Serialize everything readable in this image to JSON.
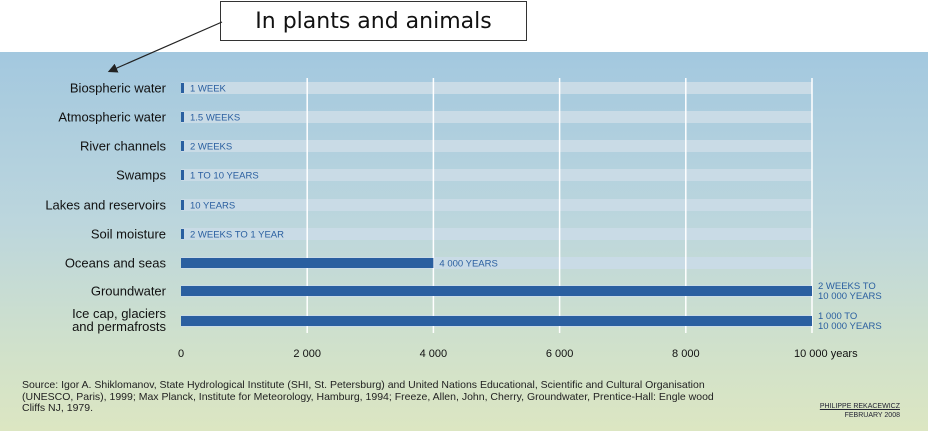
{
  "callout": {
    "text": "In plants and animals"
  },
  "chart_data": {
    "type": "bar",
    "orientation": "horizontal",
    "categories": [
      "Biospheric water",
      "Atmospheric water",
      "River channels",
      "Swamps",
      "Lakes and reservoirs",
      "Soil moisture",
      "Oceans and seas",
      "Groundwater",
      "Ice cap, glaciers and permafrosts"
    ],
    "values": [
      0.02,
      0.03,
      0.04,
      10,
      10,
      1,
      4000,
      10000,
      10000
    ],
    "value_labels": [
      [
        "1 WEEK"
      ],
      [
        "1.5 WEEKS"
      ],
      [
        "2 WEEKS"
      ],
      [
        "1 TO 10 YEARS"
      ],
      [
        "10 YEARS"
      ],
      [
        "2 WEEKS TO 1 YEAR"
      ],
      [
        "4 000 YEARS"
      ],
      [
        "2 WEEKS TO",
        "10 000 YEARS"
      ],
      [
        "1 000 TO",
        "10 000 YEARS"
      ]
    ],
    "category_lines": [
      [
        "Biospheric water"
      ],
      [
        "Atmospheric water"
      ],
      [
        "River channels"
      ],
      [
        "Swamps"
      ],
      [
        "Lakes and reservoirs"
      ],
      [
        "Soil moisture"
      ],
      [
        "Oceans and seas"
      ],
      [
        "Groundwater"
      ],
      [
        "Ice cap, glaciers",
        "and permafrosts"
      ]
    ],
    "x_ticks": [
      0,
      2000,
      4000,
      6000,
      8000,
      10000
    ],
    "x_tick_labels": [
      "0",
      "2 000",
      "4 000",
      "6 000",
      "8 000",
      "10 000 years"
    ],
    "xlim": [
      0,
      10000
    ],
    "grid": true,
    "colors": {
      "bar": "#2a5fa0",
      "track": "#c9dbe6",
      "label": "#2a5fa0",
      "grid": "#ffffff"
    }
  },
  "source_text": "Source: Igor A. Shiklomanov, State Hydrological Institute (SHI, St. Petersburg) and United Nations Educational, Scientific and Cultural Organisation (UNESCO, Paris), 1999; Max Planck, Institute for Meteorology, Hamburg, 1994; Freeze, Allen, John, Cherry, Groundwater, Prentice-Hall: Engle wood Cliffs NJ, 1979.",
  "credit": {
    "name": "PHILIPPE REKACEWICZ",
    "date": "FEBRUARY 2008"
  }
}
